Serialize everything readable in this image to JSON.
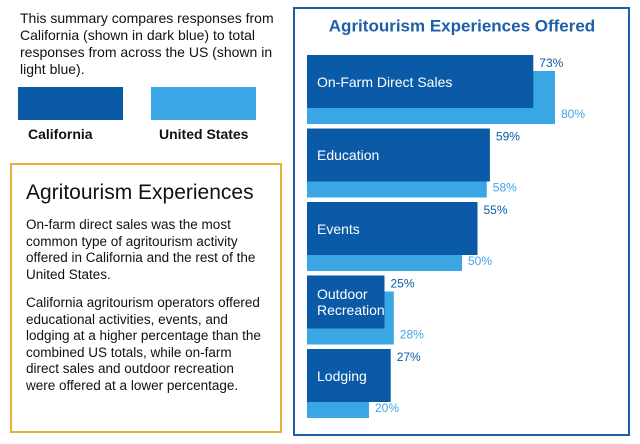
{
  "intro": "This summary compares responses from California (shown in dark blue) to total responses from across the US (shown in light blue).",
  "text_box": {
    "title": "Agritourism Experiences",
    "paragraphs": [
      "On-farm direct sales was the most common type of agritourism activity offered in California and the rest of the United States.",
      "California agritourism operators offered educational activities, events, and lodging at a higher percentage than the combined US totals, while on-farm direct sales and outdoor recreation were offered at a lower percentage."
    ]
  },
  "chart_data": {
    "type": "bar",
    "orientation": "horizontal",
    "title": "Agritourism Experiences Offered",
    "categories": [
      "On-Farm Direct Sales",
      "Education",
      "Events",
      "Outdoor Recreation",
      "Lodging"
    ],
    "series": [
      {
        "name": "California",
        "color": "#0b5aa8",
        "values": [
          73,
          59,
          55,
          25,
          27
        ],
        "value_labels": [
          "73%",
          "59%",
          "55%",
          "25%",
          "27%"
        ]
      },
      {
        "name": "United States",
        "color": "#3ba6e4",
        "values": [
          80,
          58,
          50,
          28,
          20
        ],
        "value_labels": [
          "80%",
          "58%",
          "50%",
          "28%",
          "20%"
        ]
      }
    ],
    "xlim": [
      0,
      100
    ]
  }
}
